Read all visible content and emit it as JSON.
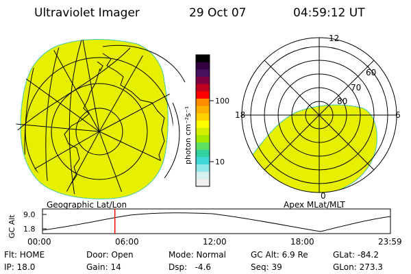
{
  "header": {
    "instrument": "Ultraviolet Imager",
    "date": "29 Oct 07",
    "time": "04:59:12 UT"
  },
  "left_panel": {
    "label": "Geographic Lat/Lon"
  },
  "right_panel": {
    "label": "Apex MLat/MLT",
    "mlt_labels": [
      "12",
      "18",
      "6",
      "0"
    ],
    "mlat_labels": [
      "60",
      "70",
      "80"
    ]
  },
  "colorbar": {
    "unit_label": "photon cm⁻²s⁻¹",
    "ticks": [
      "100",
      "10"
    ],
    "colors": [
      "#000000",
      "#300040",
      "#4a1060",
      "#800040",
      "#c00020",
      "#ff0000",
      "#ff8c00",
      "#ffb000",
      "#ffd000",
      "#ffff00",
      "#d0f000",
      "#a0e800",
      "#60e060",
      "#30d0a0",
      "#40d8d8",
      "#90e8e8",
      "#d8f0f0",
      "#f0f0f0"
    ]
  },
  "altitude_plot": {
    "axis_label": "GC Alt",
    "y_ticks": [
      "9.0",
      "1.8"
    ],
    "x_ticks": [
      "00:00",
      "06:00",
      "12:00",
      "18:00",
      "23:59"
    ],
    "marker_color": "#ff0000",
    "marker_time_fraction": 0.208
  },
  "status": {
    "flt": "Flt: HOME",
    "ip": "IP: 18.0",
    "door": "Door: Open",
    "gain": "Gain: 14",
    "mode": "Mode: Normal",
    "dsp": "Dsp:   -4.6",
    "gc_alt": "GC Alt: 6.9 Re",
    "seq": "Seq: 39",
    "glat": "GLat: -84.2",
    "glon": "GLon: 273.3"
  },
  "colors": {
    "fill": "#e6f000",
    "edge": "#40c8b0"
  }
}
